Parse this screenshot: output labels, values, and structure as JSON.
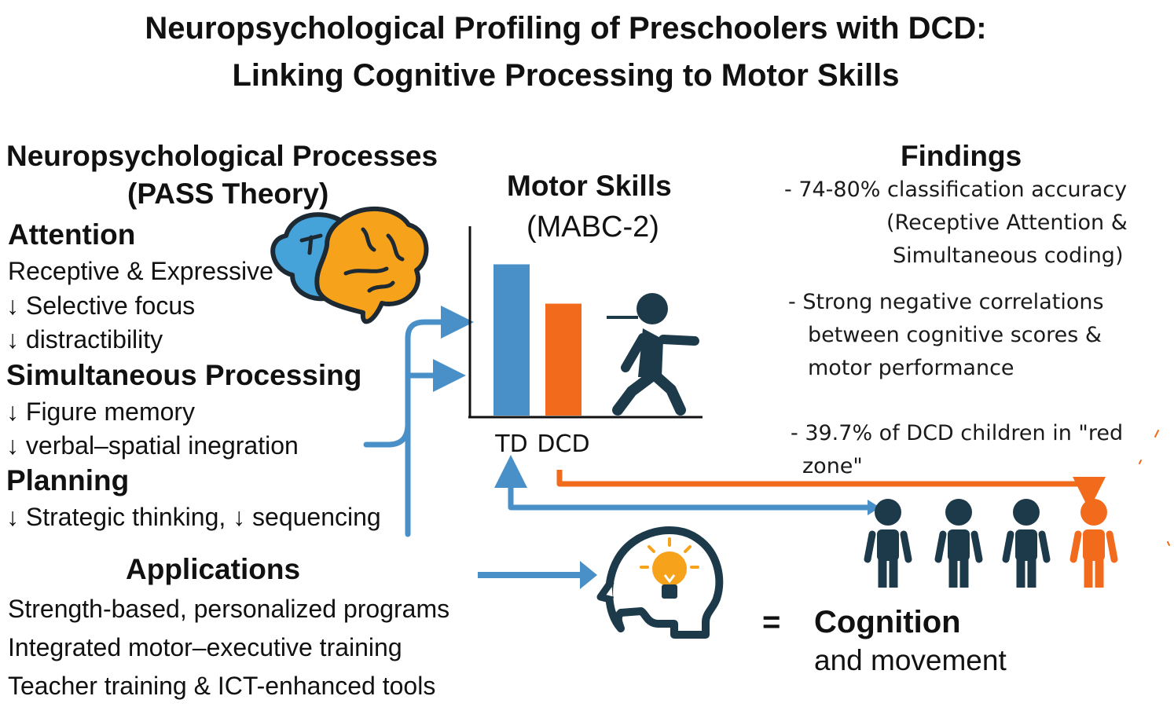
{
  "title": {
    "line1": "Neuropsychological Profiling of Preschoolers with DCD:",
    "line2": "Linking Cognitive Processing to Motor Skills"
  },
  "processes": {
    "heading1": "Neuropsychological Processes",
    "heading2": "(PASS Theory)",
    "attention": {
      "label": "Attention",
      "items": [
        "Receptive & Expressive",
        "↓ Selective focus",
        "↓ distractibility"
      ]
    },
    "simultaneous": {
      "label": "Simultaneous Processing",
      "items": [
        "↓ Figure memory",
        "↓ verbal–spatial inegration"
      ]
    },
    "planning": {
      "label": "Planning",
      "items": [
        "↓ Strategic thinking, ↓ sequencing"
      ]
    }
  },
  "motor": {
    "heading1": "Motor Skills",
    "heading2": "(MABC-2)"
  },
  "chart_data": {
    "type": "bar",
    "categories": [
      "TD",
      "DCD"
    ],
    "values": [
      1.0,
      0.74
    ],
    "colors": [
      "#4a90c8",
      "#f26a1b"
    ],
    "title": "",
    "xlabel": "",
    "ylabel": "",
    "ylim": [
      0,
      1.07
    ]
  },
  "findings": {
    "heading": "Findings",
    "items": [
      "- 74-80% classification accuracy",
      "(Receptive Attention &",
      "Simultaneous coding)",
      "- Strong negative correlations",
      "between cognitive scores &",
      "motor performance",
      "- 39.7% of DCD children in \"red",
      "zone\""
    ]
  },
  "applications": {
    "heading": "Applications",
    "items": [
      "Strength-based, personalized programs",
      "Integrated motor–executive training",
      "Teacher training & ICT-enhanced tools"
    ]
  },
  "conclusion": {
    "symbol": "=",
    "line1": "Cognition",
    "line2": "and movement"
  },
  "icons": [
    "brain-icon",
    "running-child-icon",
    "head-lightbulb-icon",
    "child-figure-icon"
  ],
  "colors": {
    "blue": "#4a90c8",
    "orange": "#f26a1b",
    "navy": "#1d3a4a",
    "brain_blue": "#45a3d9",
    "brain_orange": "#f7a21b"
  }
}
